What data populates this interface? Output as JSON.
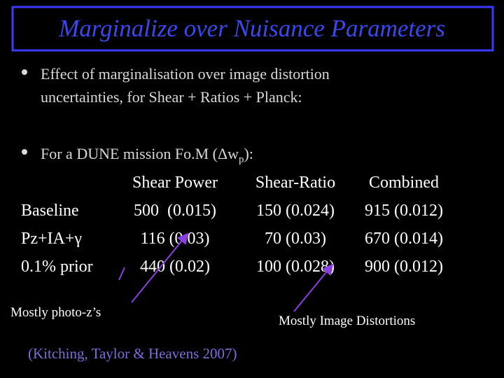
{
  "title": "Marginalize over Nuisance Parameters",
  "bullets": [
    {
      "lines": [
        "Effect of marginalisation over image distortion",
        "uncertainties, for Shear + Ratios + Planck:"
      ]
    },
    {
      "text": "For a DUNE mission Fo.M (Δw",
      "subscript": "p",
      "suffix": "):"
    }
  ],
  "table": {
    "columns": [
      "Shear Power",
      "Shear-Ratio",
      "Combined"
    ],
    "rows": [
      [
        "Baseline",
        "500  (0.015)",
        "150 (0.024)",
        "915 (0.012)"
      ],
      [
        "Pz+IA+γ",
        "116 (0.03)",
        "70 (0.03)",
        "670 (0.014)"
      ],
      [
        "0.1% prior",
        "440 (0.02)",
        "100 (0.028)",
        "900 (0.012)"
      ]
    ]
  },
  "annotations": [
    "Mostly photo-z’s",
    "Mostly Image Distortions"
  ],
  "citation": "(Kitching, Taylor & Heavens 2007)"
}
